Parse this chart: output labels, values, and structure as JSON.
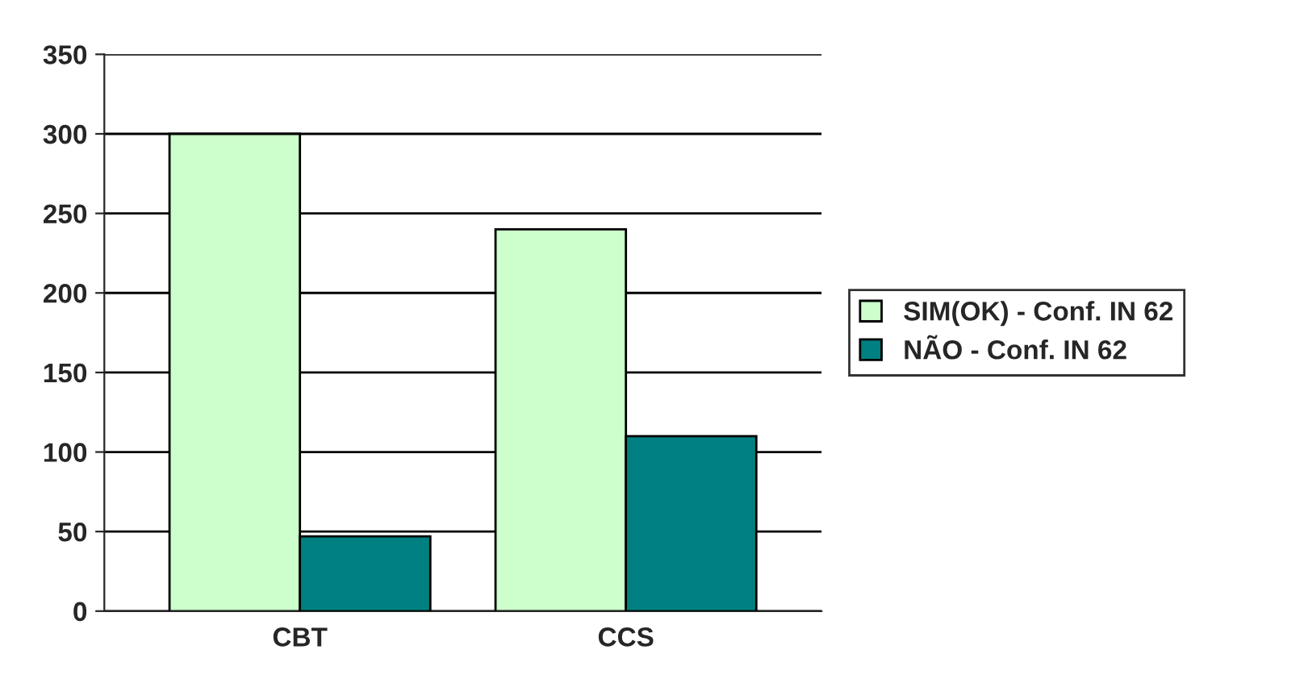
{
  "chart_data": {
    "type": "bar",
    "categories": [
      "CBT",
      "CCS"
    ],
    "series": [
      {
        "name": "SIM(OK) - Conf. IN 62",
        "color": "#ccffcc",
        "values": [
          300,
          240
        ]
      },
      {
        "name": "NÃO - Conf. IN 62",
        "color": "#008080",
        "values": [
          47,
          110
        ]
      }
    ],
    "ylim": [
      0,
      350
    ],
    "yticks": [
      0,
      50,
      100,
      150,
      200,
      250,
      300,
      350
    ],
    "grid": "y",
    "legend": "right"
  }
}
